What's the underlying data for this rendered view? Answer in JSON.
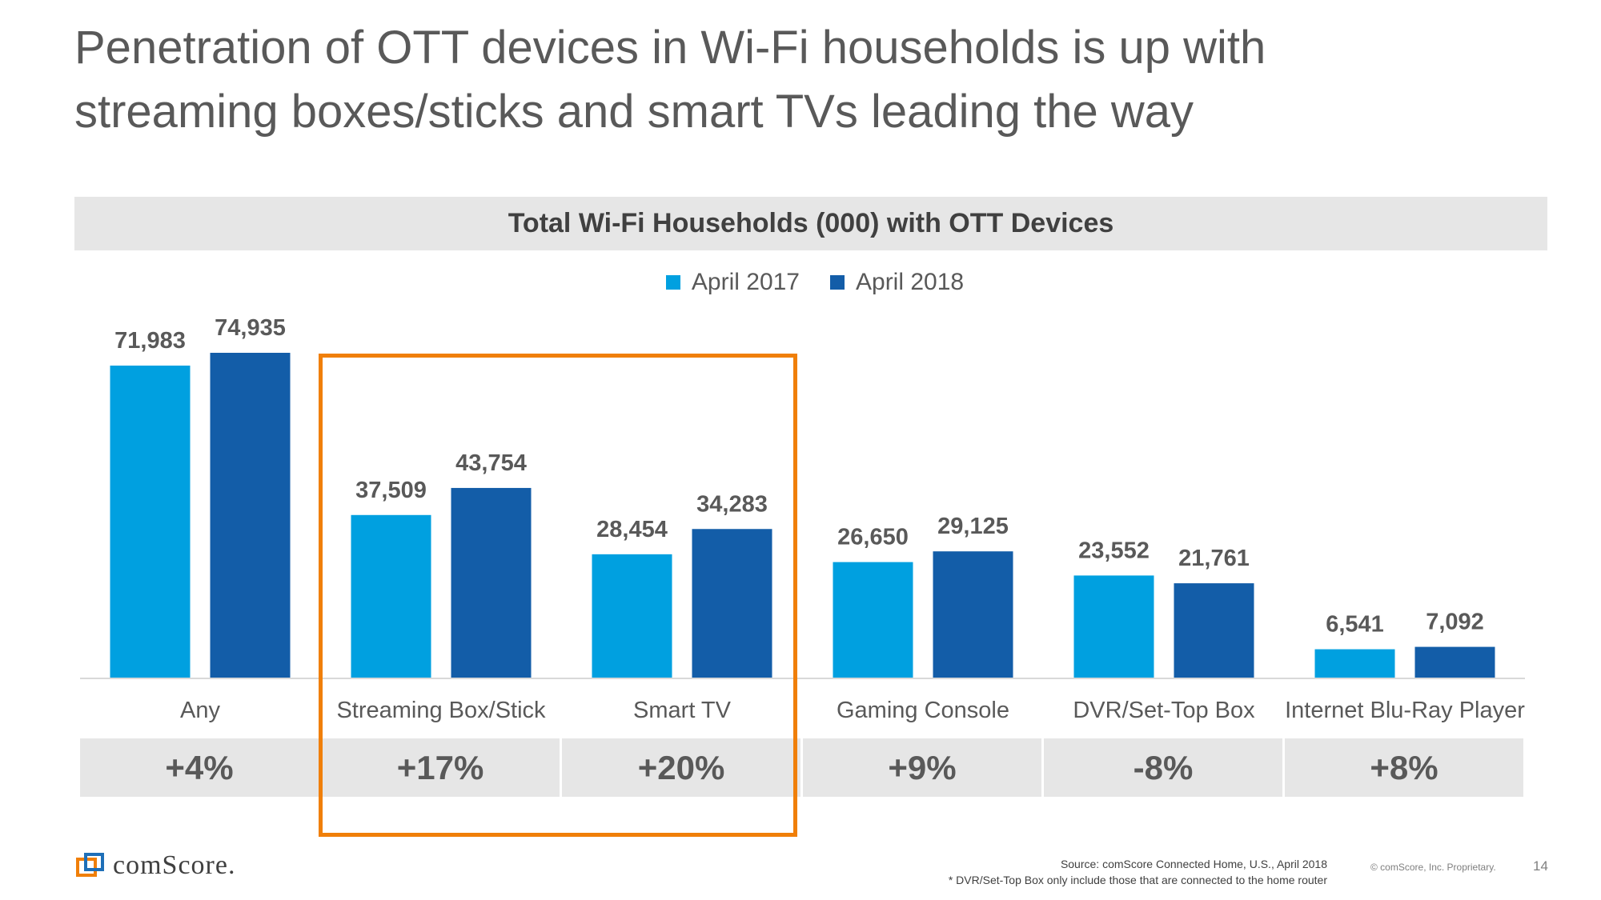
{
  "slide": {
    "title_line1": "Penetration of OTT devices in Wi-Fi households is up with",
    "title_line2": "streaming boxes/sticks and smart TVs leading the way",
    "page_number": "14",
    "copyright": "© comScore, Inc. Proprietary.",
    "source_line1": "Source: comScore Connected Home, U.S., April 2018",
    "source_line2": "* DVR/Set-Top Box only include those that are connected to the home router",
    "logo_text": "comScore.",
    "colors": {
      "series_2017": "#00a0e0",
      "series_2018": "#135da8",
      "highlight": "#f07f09"
    }
  },
  "chart_data": {
    "type": "bar",
    "title": "Total Wi-Fi Households (000) with OTT Devices",
    "categories": [
      "Any",
      "Streaming Box/Stick",
      "Smart TV",
      "Gaming Console",
      "DVR/Set-Top Box",
      "Internet Blu-Ray Player"
    ],
    "series": [
      {
        "name": "April 2017",
        "values": [
          71983,
          37509,
          28454,
          26650,
          23552,
          6541
        ],
        "labels": [
          "71,983",
          "37,509",
          "28,454",
          "26,650",
          "23,552",
          "6,541"
        ]
      },
      {
        "name": "April 2018",
        "values": [
          74935,
          43754,
          34283,
          29125,
          21761,
          7092
        ],
        "labels": [
          "74,935",
          "43,754",
          "34,283",
          "29,125",
          "21,761",
          "7,092"
        ]
      }
    ],
    "changes": [
      "+4%",
      "+17%",
      "+20%",
      "+9%",
      "-8%",
      "+8%"
    ],
    "highlighted_categories": [
      "Streaming Box/Stick",
      "Smart TV"
    ],
    "xlabel": "",
    "ylabel": "",
    "ylim": [
      0,
      74935
    ],
    "legend": "top-center",
    "grid": false
  }
}
